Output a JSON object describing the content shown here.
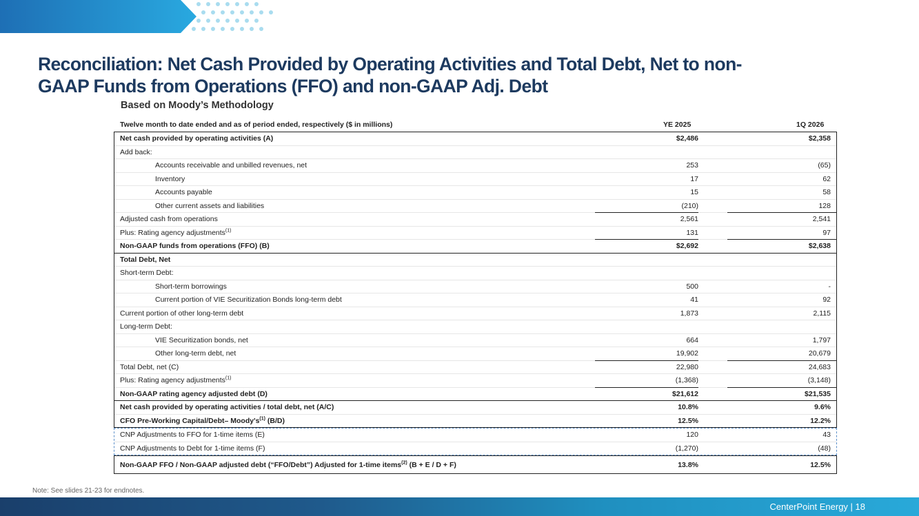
{
  "header": {
    "title": "Reconciliation: Net Cash Provided by Operating Activities and Total Debt, Net to non-GAAP Funds from Operations (FFO) and non-GAAP Adj. Debt",
    "subtitle": "Based on Moody’s Methodology"
  },
  "table": {
    "caption": "Twelve month to date ended and as of period ended, respectively ($ in millions)",
    "col1": "YE 2025",
    "col2": "1Q 2026",
    "section1": [
      {
        "label": "Net cash provided by operating activities (A)",
        "v1": "$2,486",
        "v2": "$2,358",
        "bold": true
      },
      {
        "label": "Add back:",
        "v1": "",
        "v2": ""
      },
      {
        "label": "Accounts receivable and unbilled revenues, net",
        "v1": "253",
        "v2": "(65)",
        "indent": true
      },
      {
        "label": "Inventory",
        "v1": "17",
        "v2": "62",
        "indent": true
      },
      {
        "label": "Accounts payable",
        "v1": "15",
        "v2": "58",
        "indent": true
      },
      {
        "label": "Other current assets and liabilities",
        "v1": "(210)",
        "v2": "128",
        "indent": true,
        "underline": true
      },
      {
        "label": "Adjusted cash from operations",
        "v1": "2,561",
        "v2": "2,541"
      },
      {
        "label": "Plus: Rating agency adjustments",
        "sup": "(1)",
        "v1": "131",
        "v2": "97",
        "underline": true
      },
      {
        "label": "Non-GAAP funds from operations (FFO) (B)",
        "v1": "$2,692",
        "v2": "$2,638",
        "bold": true
      }
    ],
    "section2": [
      {
        "label": "Total Debt, Net",
        "v1": "",
        "v2": "",
        "bold": true
      },
      {
        "label": "Short-term Debt:",
        "v1": "",
        "v2": ""
      },
      {
        "label": "Short-term borrowings",
        "v1": "500",
        "v2": "-",
        "indent": true
      },
      {
        "label": "Current portion of VIE Securitization Bonds long-term debt",
        "v1": "41",
        "v2": "92",
        "indent": true
      },
      {
        "label": "Current portion of other long-term debt",
        "v1": "1,873",
        "v2": "2,115"
      },
      {
        "label": "Long-term Debt:",
        "v1": "",
        "v2": ""
      },
      {
        "label": "VIE Securitization bonds, net",
        "v1": "664",
        "v2": "1,797",
        "indent": true
      },
      {
        "label": "Other long-term debt, net",
        "v1": "19,902",
        "v2": "20,679",
        "indent": true,
        "underline": true
      },
      {
        "label": "Total Debt, net (C)",
        "v1": "22,980",
        "v2": "24,683"
      },
      {
        "label": "Plus: Rating agency adjustments",
        "sup": "(1)",
        "v1": "(1,368)",
        "v2": "(3,148)",
        "underline": true
      },
      {
        "label": "Non-GAAP rating agency adjusted debt (D)",
        "v1": "$21,612",
        "v2": "$21,535",
        "bold": true
      }
    ],
    "section3": [
      {
        "label": "Net cash provided by operating activities / total debt, net (A/C)",
        "v1": "10.8%",
        "v2": "9.6%",
        "bold": true
      },
      {
        "label": "CFO Pre-Working Capital/Debt– Moody's",
        "sup": "(1)",
        "label_suffix": " (B/D)",
        "v1": "12.5%",
        "v2": "12.2%",
        "bold": true
      }
    ],
    "dashed_rows": [
      {
        "label": "CNP Adjustments to FFO for 1-time items (E)",
        "v1": "120",
        "v2": "43"
      },
      {
        "label": "CNP Adjustments to Debt for 1-time items (F)",
        "v1": "(1,270)",
        "v2": "(48)"
      }
    ],
    "final_row": {
      "label": "Non-GAAP FFO / Non-GAAP adjusted debt (“FFO/Debt”) Adjusted for 1-time items",
      "sup": "(2)",
      "label_suffix": " (B + E / D + F)",
      "v1": "13.8%",
      "v2": "12.5%"
    }
  },
  "note": "Note: See slides 21-23 for endnotes.",
  "footer": {
    "text": "CenterPoint Energy | 18"
  },
  "colors": {
    "title": "#1d3a5f",
    "accent": "#1f8fbf",
    "dashed": "#5b8fc9"
  }
}
